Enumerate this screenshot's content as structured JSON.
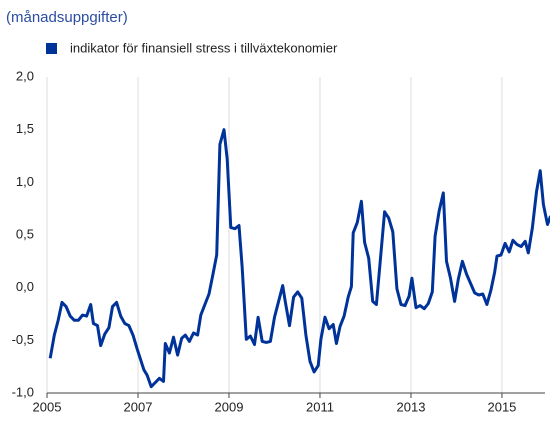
{
  "chart_data": {
    "type": "line",
    "title": "(månadsuppgifter)",
    "x": [
      2005.07,
      2005.16,
      2005.24,
      2005.33,
      2005.42,
      2005.51,
      2005.6,
      2005.69,
      2005.78,
      2005.87,
      2005.96,
      2006.02,
      2006.11,
      2006.18,
      2006.27,
      2006.36,
      2006.44,
      2006.53,
      2006.62,
      2006.71,
      2006.8,
      2006.89,
      2006.98,
      2007.04,
      2007.13,
      2007.2,
      2007.29,
      2007.38,
      2007.47,
      2007.56,
      2007.6,
      2007.69,
      2007.78,
      2007.87,
      2007.96,
      2008.04,
      2008.13,
      2008.22,
      2008.31,
      2008.38,
      2008.47,
      2008.56,
      2008.64,
      2008.73,
      2008.8,
      2008.89,
      2008.96,
      2009.04,
      2009.13,
      2009.22,
      2009.29,
      2009.38,
      2009.47,
      2009.56,
      2009.64,
      2009.73,
      2009.82,
      2009.91,
      2010.0,
      2010.09,
      2010.18,
      2010.24,
      2010.33,
      2010.42,
      2010.51,
      2010.6,
      2010.69,
      2010.78,
      2010.87,
      2010.96,
      2011.02,
      2011.11,
      2011.2,
      2011.29,
      2011.36,
      2011.44,
      2011.53,
      2011.62,
      2011.69,
      2011.73,
      2011.82,
      2011.91,
      2011.98,
      2012.07,
      2012.16,
      2012.24,
      2012.33,
      2012.42,
      2012.51,
      2012.6,
      2012.69,
      2012.78,
      2012.87,
      2012.96,
      2013.02,
      2013.11,
      2013.2,
      2013.29,
      2013.38,
      2013.47,
      2013.53,
      2013.62,
      2013.71,
      2013.78,
      2013.87,
      2013.96,
      2014.04,
      2014.13,
      2014.22,
      2014.31,
      2014.4,
      2014.49,
      2014.58,
      2014.67,
      2014.76,
      2014.84,
      2014.89,
      2014.98,
      2015.07,
      2015.16,
      2015.24,
      2015.33,
      2015.42,
      2015.51,
      2015.58,
      2015.67,
      2015.76,
      2015.84,
      2015.91,
      2016.0,
      2016.07
    ],
    "series": [
      {
        "name": "indikator för finansiell stress i tillväxtekonomier",
        "color": "#003399",
        "values": [
          -0.67,
          -0.45,
          -0.32,
          -0.14,
          -0.18,
          -0.27,
          -0.31,
          -0.31,
          -0.26,
          -0.27,
          -0.16,
          -0.34,
          -0.36,
          -0.55,
          -0.44,
          -0.38,
          -0.18,
          -0.14,
          -0.27,
          -0.34,
          -0.36,
          -0.45,
          -0.58,
          -0.66,
          -0.78,
          -0.83,
          -0.94,
          -0.9,
          -0.86,
          -0.89,
          -0.53,
          -0.62,
          -0.47,
          -0.64,
          -0.48,
          -0.45,
          -0.51,
          -0.43,
          -0.45,
          -0.26,
          -0.16,
          -0.06,
          0.11,
          0.31,
          1.36,
          1.5,
          1.22,
          0.57,
          0.56,
          0.59,
          0.19,
          -0.49,
          -0.46,
          -0.54,
          -0.28,
          -0.51,
          -0.52,
          -0.51,
          -0.28,
          -0.13,
          0.02,
          -0.14,
          -0.36,
          -0.09,
          -0.04,
          -0.1,
          -0.45,
          -0.7,
          -0.8,
          -0.74,
          -0.49,
          -0.28,
          -0.39,
          -0.35,
          -0.53,
          -0.37,
          -0.27,
          -0.09,
          0.01,
          0.52,
          0.62,
          0.82,
          0.43,
          0.28,
          -0.13,
          -0.16,
          0.28,
          0.72,
          0.66,
          0.53,
          -0.01,
          -0.16,
          -0.17,
          -0.08,
          0.09,
          -0.19,
          -0.17,
          -0.2,
          -0.15,
          -0.04,
          0.49,
          0.73,
          0.9,
          0.25,
          0.09,
          -0.13,
          0.08,
          0.25,
          0.13,
          0.04,
          -0.05,
          -0.07,
          -0.06,
          -0.16,
          -0.02,
          0.15,
          0.3,
          0.31,
          0.42,
          0.34,
          0.45,
          0.41,
          0.39,
          0.44,
          0.33,
          0.57,
          0.91,
          1.11,
          0.79,
          0.6,
          0.68
        ]
      }
    ],
    "xlim": [
      2005,
      2016.1
    ],
    "xticks": [
      2005,
      2007,
      2009,
      2011,
      2013,
      2015
    ],
    "ylim": [
      -1,
      2
    ],
    "yticks": [
      {
        "value": -1,
        "label": "-1,0"
      },
      {
        "value": -0.5,
        "label": "-0,5"
      },
      {
        "value": 0,
        "label": "0,0"
      },
      {
        "value": 0.5,
        "label": "0,5"
      },
      {
        "value": 1,
        "label": "1,0"
      },
      {
        "value": 1.5,
        "label": "1,5"
      },
      {
        "value": 2,
        "label": "2,0"
      }
    ],
    "grid": "x"
  }
}
